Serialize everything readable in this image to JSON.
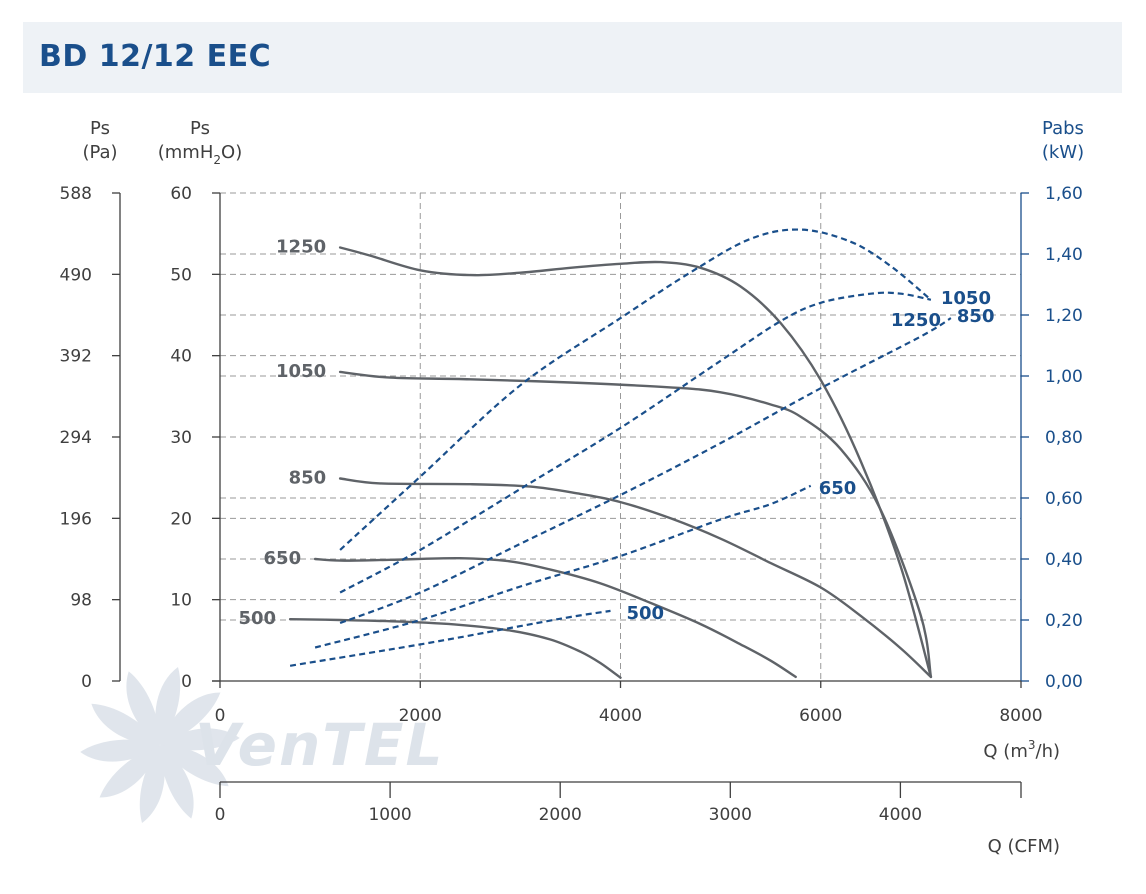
{
  "header": {
    "title": "BD 12/12 EEC"
  },
  "colors": {
    "title": "#1a4f8b",
    "ps_curve": "#5f6368",
    "power_curve": "#1a4f8b",
    "axis_dark": "#3f3f3f",
    "axis_blue": "#1a4f8b",
    "grid": "#9a9a9a",
    "watermark": "#dde3ea"
  },
  "watermark": {
    "text": "VenTEL"
  },
  "chart_data": {
    "type": "line",
    "axes": {
      "x_m3h": {
        "label": "Q (m³/h)",
        "label_parts": [
          "Q (m",
          "3",
          "/h)"
        ],
        "range": [
          0,
          8000
        ],
        "ticks": [
          "0",
          "2000",
          "4000",
          "6000",
          "8000"
        ]
      },
      "x_cfm": {
        "label": "Q (CFM)",
        "range": [
          0,
          4709
        ],
        "ticks": [
          "0",
          "1000",
          "2000",
          "3000",
          "4000"
        ]
      },
      "y_mmh2o": {
        "label": "Ps (mmH2O)",
        "label_line1": "Ps",
        "label_line2_parts": [
          "(mmH",
          "2",
          "O)"
        ],
        "range": [
          0,
          60
        ],
        "ticks": [
          "0",
          "10",
          "20",
          "30",
          "40",
          "50",
          "60"
        ]
      },
      "y_pa": {
        "label": "Ps (Pa)",
        "label_line1": "Ps",
        "label_line2": "(Pa)",
        "range": [
          0,
          588
        ],
        "ticks": [
          "0",
          "98",
          "196",
          "294",
          "392",
          "490",
          "588"
        ]
      },
      "y_kw": {
        "label": "Pabs (kW)",
        "label_line1": "Pabs",
        "label_line2": "(kW)",
        "range": [
          0,
          1.6
        ],
        "ticks": [
          "0,00",
          "0,20",
          "0,40",
          "0,60",
          "0,80",
          "1,00",
          "1,20",
          "1,40",
          "1,60"
        ]
      }
    },
    "grid": true,
    "pressure_series": [
      {
        "name": "1250",
        "points": [
          [
            1200,
            53.3
          ],
          [
            1500,
            52.3
          ],
          [
            2000,
            50.5
          ],
          [
            2500,
            49.9
          ],
          [
            3000,
            50.2
          ],
          [
            3500,
            50.8
          ],
          [
            4000,
            51.3
          ],
          [
            4400,
            51.5
          ],
          [
            4800,
            50.8
          ],
          [
            5200,
            48.5
          ],
          [
            5600,
            44.0
          ],
          [
            6000,
            37.0
          ],
          [
            6400,
            27.0
          ],
          [
            6800,
            14.0
          ],
          [
            7100,
            0.5
          ]
        ]
      },
      {
        "name": "1050",
        "points": [
          [
            1200,
            38.0
          ],
          [
            1700,
            37.3
          ],
          [
            2500,
            37.1
          ],
          [
            3500,
            36.7
          ],
          [
            4500,
            36.1
          ],
          [
            5000,
            35.5
          ],
          [
            5500,
            34.0
          ],
          [
            5800,
            32.5
          ],
          [
            6200,
            28.5
          ],
          [
            6600,
            21.0
          ],
          [
            7000,
            8.0
          ],
          [
            7100,
            0.5
          ]
        ]
      },
      {
        "name": "850",
        "points": [
          [
            1200,
            24.9
          ],
          [
            1600,
            24.3
          ],
          [
            2500,
            24.2
          ],
          [
            3100,
            23.9
          ],
          [
            3600,
            23.0
          ],
          [
            4000,
            22.0
          ],
          [
            4500,
            20.0
          ],
          [
            5000,
            17.5
          ],
          [
            5500,
            14.5
          ],
          [
            6000,
            11.5
          ],
          [
            6400,
            8.0
          ],
          [
            6800,
            4.0
          ],
          [
            7100,
            0.5
          ]
        ]
      },
      {
        "name": "650",
        "points": [
          [
            950,
            15.0
          ],
          [
            1200,
            14.8
          ],
          [
            1700,
            14.9
          ],
          [
            2400,
            15.1
          ],
          [
            2900,
            14.7
          ],
          [
            3300,
            13.7
          ],
          [
            3800,
            12.0
          ],
          [
            4300,
            9.6
          ],
          [
            4800,
            7.0
          ],
          [
            5200,
            4.5
          ],
          [
            5500,
            2.5
          ],
          [
            5750,
            0.5
          ]
        ]
      },
      {
        "name": "500",
        "points": [
          [
            700,
            7.6
          ],
          [
            1200,
            7.5
          ],
          [
            1800,
            7.3
          ],
          [
            2400,
            6.9
          ],
          [
            2900,
            6.2
          ],
          [
            3300,
            5.1
          ],
          [
            3600,
            3.6
          ],
          [
            3800,
            2.2
          ],
          [
            4000,
            0.4
          ]
        ]
      }
    ],
    "power_series": [
      {
        "name": "1250",
        "points": [
          [
            1200,
            0.43
          ],
          [
            2000,
            0.67
          ],
          [
            3000,
            0.97
          ],
          [
            4000,
            1.19
          ],
          [
            4700,
            1.34
          ],
          [
            5300,
            1.45
          ],
          [
            5800,
            1.48
          ],
          [
            6300,
            1.44
          ],
          [
            6700,
            1.36
          ],
          [
            7100,
            1.25
          ]
        ]
      },
      {
        "name": "1050",
        "points": [
          [
            1200,
            0.29
          ],
          [
            2000,
            0.43
          ],
          [
            3000,
            0.63
          ],
          [
            4000,
            0.83
          ],
          [
            5000,
            1.05
          ],
          [
            5600,
            1.18
          ],
          [
            6000,
            1.24
          ],
          [
            6500,
            1.27
          ],
          [
            6800,
            1.27
          ],
          [
            7100,
            1.25
          ]
        ]
      },
      {
        "name": "850",
        "points": [
          [
            1200,
            0.19
          ],
          [
            2000,
            0.29
          ],
          [
            3000,
            0.45
          ],
          [
            4000,
            0.61
          ],
          [
            5000,
            0.78
          ],
          [
            6000,
            0.96
          ],
          [
            7000,
            1.13
          ],
          [
            7300,
            1.19
          ]
        ]
      },
      {
        "name": "650",
        "points": [
          [
            950,
            0.11
          ],
          [
            2000,
            0.2
          ],
          [
            3000,
            0.31
          ],
          [
            4000,
            0.41
          ],
          [
            5000,
            0.53
          ],
          [
            5500,
            0.58
          ],
          [
            5900,
            0.64
          ]
        ]
      },
      {
        "name": "500",
        "points": [
          [
            700,
            0.05
          ],
          [
            2000,
            0.12
          ],
          [
            3000,
            0.18
          ],
          [
            3500,
            0.21
          ],
          [
            3900,
            0.23
          ]
        ]
      }
    ]
  }
}
